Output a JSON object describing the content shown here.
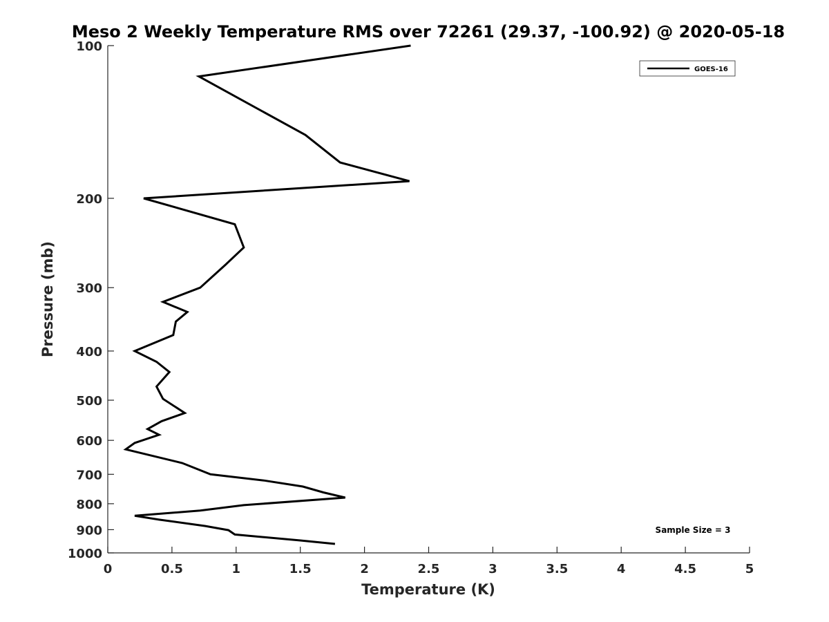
{
  "chart_data": {
    "type": "line",
    "title": "Meso 2 Weekly Temperature RMS over 72261 (29.37, -100.92) @ 2020-05-18",
    "xlabel": "Temperature (K)",
    "ylabel": "Pressure (mb)",
    "xlim": [
      0,
      5
    ],
    "ylim": [
      100,
      1000
    ],
    "y_scale": "log",
    "y_reversed": true,
    "grid": false,
    "x_ticks": [
      0,
      0.5,
      1,
      1.5,
      2,
      2.5,
      3,
      3.5,
      4,
      4.5,
      5
    ],
    "x_tick_labels": [
      "0",
      "0.5",
      "1",
      "1.5",
      "2",
      "2.5",
      "3",
      "3.5",
      "4",
      "4.5",
      "5"
    ],
    "y_ticks": [
      100,
      200,
      300,
      400,
      500,
      600,
      700,
      800,
      900,
      1000
    ],
    "y_tick_labels": [
      "100",
      "200",
      "300",
      "400",
      "500",
      "600",
      "700",
      "800",
      "900",
      "1000"
    ],
    "legend_position": "top-right",
    "annotation": "Sample Size = 3",
    "series": [
      {
        "name": "GOES-16",
        "color": "#000000",
        "x": [
          2.36,
          0.71,
          1.54,
          1.81,
          2.35,
          0.28,
          0.99,
          1.06,
          0.92,
          0.72,
          0.43,
          0.62,
          0.53,
          0.51,
          0.21,
          0.38,
          0.48,
          0.38,
          0.43,
          0.6,
          0.42,
          0.31,
          0.4,
          0.21,
          0.14,
          0.58,
          0.8,
          1.22,
          1.52,
          1.68,
          1.85,
          1.06,
          0.72,
          0.21,
          0.4,
          0.76,
          0.94,
          0.99,
          1.5,
          1.77
        ],
        "y": [
          100,
          115,
          150,
          170,
          185,
          200,
          225,
          250,
          270,
          300,
          320,
          335,
          350,
          372,
          400,
          420,
          440,
          470,
          497,
          530,
          550,
          570,
          585,
          607,
          625,
          665,
          700,
          720,
          740,
          760,
          778,
          805,
          825,
          845,
          860,
          885,
          902,
          920,
          945,
          960
        ]
      }
    ]
  }
}
